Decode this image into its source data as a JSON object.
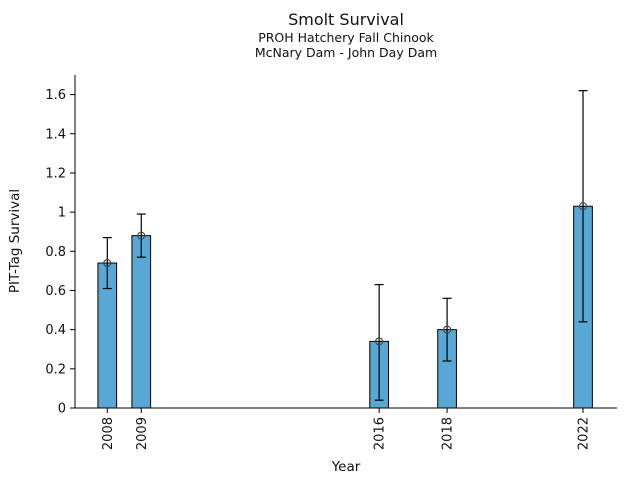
{
  "header": {
    "title": "Smolt Survival",
    "subtitle1": "PROH Hatchery Fall Chinook",
    "subtitle2": "McNary Dam - John Day Dam"
  },
  "chart_data": {
    "type": "bar",
    "title": "Smolt Survival",
    "subtitle": [
      "PROH Hatchery Fall Chinook",
      "McNary Dam - John Day Dam"
    ],
    "xlabel": "Year",
    "ylabel": "PIT-Tag Survival",
    "categories": [
      "2008",
      "2009",
      "2016",
      "2018",
      "2022"
    ],
    "x_years": [
      2008,
      2009,
      2016,
      2018,
      2022
    ],
    "values": [
      0.74,
      0.88,
      0.34,
      0.4,
      1.03
    ],
    "error_low": [
      0.61,
      0.77,
      0.04,
      0.24,
      0.44
    ],
    "error_high": [
      0.87,
      0.99,
      0.63,
      0.56,
      1.62
    ],
    "xlim": [
      2007.05,
      2023.0
    ],
    "ylim": [
      0,
      1.7
    ],
    "yticks": [
      0,
      0.2,
      0.4,
      0.6,
      0.8,
      1,
      1.2,
      1.4,
      1.6
    ],
    "ytick_labels": [
      "0",
      "0.2",
      "0.4",
      "0.6",
      "0.8",
      "1",
      "1.2",
      "1.4",
      "1.6"
    ],
    "grid": false,
    "legend": null,
    "marker": "open-circle",
    "bar_width_years": 0.55,
    "colors": {
      "bar_fill": "#58A7D4",
      "bar_edge": "#000000",
      "error_bar": "#000000",
      "marker_edge": "#444444",
      "axis": "#000000"
    }
  }
}
